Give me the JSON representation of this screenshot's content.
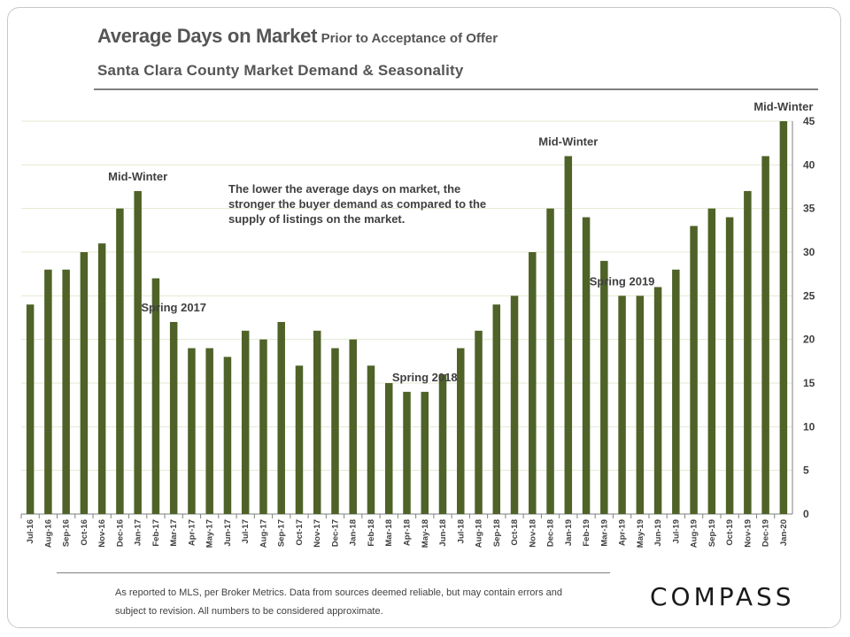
{
  "title": {
    "main": "Average Days on Market",
    "sub": "Prior to Acceptance of Offer",
    "subtitle": "Santa Clara County Market Demand & Seasonality"
  },
  "note": "The lower the average days on market, the stronger the buyer demand as compared to the supply of listings on the market.",
  "footer": "As reported to MLS, per Broker Metrics. Data from sources deemed reliable, but may contain errors and subject to revision. All numbers to be considered approximate.",
  "brand": "COMPASS",
  "colors": {
    "bar": "#4f6228",
    "grid": "#e3ead0",
    "axis": "#7f7f7f"
  },
  "chart_data": {
    "type": "bar",
    "title": "Average Days on Market Prior to Acceptance of Offer",
    "ylabel": "",
    "xlabel": "",
    "ylim": [
      0,
      45
    ],
    "yticks": [
      0,
      5,
      10,
      15,
      20,
      25,
      30,
      35,
      40,
      45
    ],
    "grid": true,
    "y_axis_side": "right",
    "categories": [
      "Jul-16",
      "Aug-16",
      "Sep-16",
      "Oct-16",
      "Nov-16",
      "Dec-16",
      "Jan-17",
      "Feb-17",
      "Mar-17",
      "Apr-17",
      "May-17",
      "Jun-17",
      "Jul-17",
      "Aug-17",
      "Sep-17",
      "Oct-17",
      "Nov-17",
      "Dec-17",
      "Jan-18",
      "Feb-18",
      "Mar-18",
      "Apr-18",
      "May-18",
      "Jun-18",
      "Jul-18",
      "Aug-18",
      "Sep-18",
      "Oct-18",
      "Nov-18",
      "Dec-18",
      "Jan-19",
      "Feb-19",
      "Mar-19",
      "Apr-19",
      "May-19",
      "Jun-19",
      "Jul-19",
      "Aug-19",
      "Sep-19",
      "Oct-19",
      "Nov-19",
      "Dec-19",
      "Jan-20"
    ],
    "values": [
      24,
      28,
      28,
      30,
      31,
      35,
      37,
      27,
      22,
      19,
      19,
      18,
      21,
      20,
      22,
      17,
      21,
      19,
      20,
      17,
      15,
      14,
      14,
      16,
      19,
      21,
      24,
      25,
      30,
      35,
      41,
      34,
      29,
      25,
      25,
      26,
      28,
      33,
      35,
      34,
      37,
      41,
      45
    ],
    "annotations": [
      {
        "text": "Mid-Winter",
        "category": "Jan-17",
        "value": 37
      },
      {
        "text": "Spring 2017",
        "category": "Mar-17",
        "value": 22
      },
      {
        "text": "Spring 2018",
        "category": "May-18",
        "value": 14
      },
      {
        "text": "Mid-Winter",
        "category": "Jan-19",
        "value": 41
      },
      {
        "text": "Spring 2019",
        "category": "Apr-19",
        "value": 25
      },
      {
        "text": "Mid-Winter",
        "category": "Jan-20",
        "value": 45
      }
    ]
  }
}
